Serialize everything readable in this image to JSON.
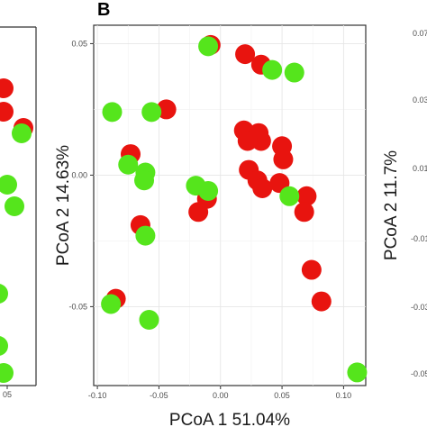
{
  "panel_label": "B",
  "left_panel": {
    "x_tick_labels": [
      "05"
    ]
  },
  "right_panel": {
    "y_axis_label": "PCoA 2  11.7%",
    "y_tick_labels": [
      "0.07",
      "0.03",
      "0.01",
      "-0.01",
      "-0.03",
      "-0.05"
    ]
  },
  "chart_data": {
    "type": "scatter",
    "title": "",
    "xlabel": "PCoA 1  51.04%",
    "ylabel": "PCoA 2  14.63%",
    "xlim": [
      -0.103,
      0.118
    ],
    "ylim": [
      -0.08,
      0.057
    ],
    "x_ticks": [
      -0.1,
      -0.05,
      0.0,
      0.05,
      0.1
    ],
    "x_tick_labels": [
      "-0.10",
      "-0.05",
      "0.00",
      "0.05",
      "0.10"
    ],
    "y_ticks": [
      -0.05,
      0.0,
      0.05
    ],
    "y_tick_labels": [
      "-0.05",
      "0.00",
      "0.05"
    ],
    "grid": true,
    "legend": "none",
    "series": [
      {
        "color": "#e8140f",
        "points": [
          [
            -0.008,
            0.0495
          ],
          [
            0.02,
            0.046
          ],
          [
            0.033,
            0.042
          ],
          [
            -0.044,
            0.025
          ],
          [
            -0.073,
            0.008
          ],
          [
            0.019,
            0.017
          ],
          [
            0.031,
            0.016
          ],
          [
            0.033,
            0.013
          ],
          [
            0.022,
            0.013
          ],
          [
            0.05,
            0.011
          ],
          [
            0.051,
            0.006
          ],
          [
            0.023,
            0.002
          ],
          [
            0.03,
            -0.002
          ],
          [
            0.048,
            -0.003
          ],
          [
            0.034,
            -0.005
          ],
          [
            0.07,
            -0.008
          ],
          [
            -0.011,
            -0.009
          ],
          [
            -0.018,
            -0.014
          ],
          [
            0.068,
            -0.014
          ],
          [
            -0.065,
            -0.019
          ],
          [
            0.074,
            -0.036
          ],
          [
            0.082,
            -0.048
          ],
          [
            -0.085,
            -0.047
          ]
        ]
      },
      {
        "color": "#55e51c",
        "points": [
          [
            -0.01,
            0.049
          ],
          [
            0.042,
            0.04
          ],
          [
            0.06,
            0.039
          ],
          [
            -0.088,
            0.024
          ],
          [
            -0.056,
            0.024
          ],
          [
            -0.075,
            0.004
          ],
          [
            -0.061,
            0.001
          ],
          [
            -0.062,
            -0.002
          ],
          [
            -0.02,
            -0.004
          ],
          [
            -0.01,
            -0.006
          ],
          [
            0.056,
            -0.008
          ],
          [
            -0.061,
            -0.023
          ],
          [
            -0.089,
            -0.049
          ],
          [
            -0.058,
            -0.055
          ],
          [
            0.111,
            -0.075
          ]
        ]
      }
    ]
  }
}
